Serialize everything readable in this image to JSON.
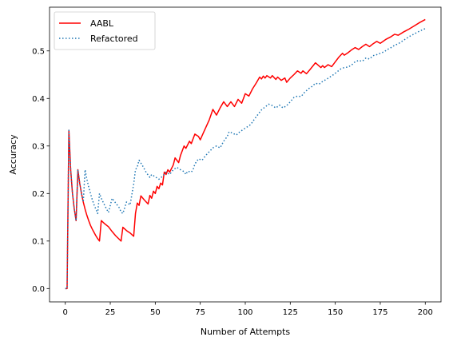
{
  "chart_data": {
    "type": "line",
    "title": "",
    "xlabel": "Number of Attempts",
    "ylabel": "Accuracy",
    "xlim": [
      -8.75,
      208.75
    ],
    "ylim": [
      -0.028,
      0.592
    ],
    "xticks": [
      0,
      25,
      50,
      75,
      100,
      125,
      150,
      175,
      200
    ],
    "yticks": [
      0.0,
      0.1,
      0.2,
      0.3,
      0.4,
      0.5
    ],
    "xtick_labels": [
      "0",
      "25",
      "50",
      "75",
      "100",
      "125",
      "150",
      "175",
      "200"
    ],
    "ytick_labels": [
      "0.0",
      "0.1",
      "0.2",
      "0.3",
      "0.4",
      "0.5"
    ],
    "grid": false,
    "legend": {
      "placement": "top-left"
    },
    "series": [
      {
        "name": "AABL",
        "color": "#ff0000",
        "style": "solid",
        "points": [
          [
            0,
            0
          ],
          [
            1,
            0
          ],
          [
            2,
            0.333
          ],
          [
            3,
            0.25
          ],
          [
            4,
            0.2
          ],
          [
            5,
            0.167
          ],
          [
            6,
            0.143
          ],
          [
            7,
            0.25
          ],
          [
            8,
            0.222
          ],
          [
            9,
            0.2
          ],
          [
            10,
            0.182
          ],
          [
            11,
            0.167
          ],
          [
            12,
            0.154
          ],
          [
            13,
            0.143
          ],
          [
            14,
            0.133
          ],
          [
            15,
            0.125
          ],
          [
            16,
            0.118
          ],
          [
            17,
            0.111
          ],
          [
            18,
            0.105
          ],
          [
            19,
            0.1
          ],
          [
            20,
            0.143
          ],
          [
            22,
            0.136
          ],
          [
            24,
            0.13
          ],
          [
            26,
            0.12
          ],
          [
            28,
            0.111
          ],
          [
            31,
            0.1
          ],
          [
            32,
            0.129
          ],
          [
            34,
            0.122
          ],
          [
            36,
            0.117
          ],
          [
            38,
            0.11
          ],
          [
            39,
            0.158
          ],
          [
            40,
            0.18
          ],
          [
            41,
            0.175
          ],
          [
            42,
            0.195
          ],
          [
            44,
            0.186
          ],
          [
            46,
            0.178
          ],
          [
            47,
            0.196
          ],
          [
            48,
            0.19
          ],
          [
            49,
            0.205
          ],
          [
            50,
            0.2
          ],
          [
            51,
            0.215
          ],
          [
            52,
            0.21
          ],
          [
            53,
            0.222
          ],
          [
            54,
            0.218
          ],
          [
            55,
            0.245
          ],
          [
            56,
            0.24
          ],
          [
            57,
            0.25
          ],
          [
            58,
            0.245
          ],
          [
            60,
            0.26
          ],
          [
            61,
            0.275
          ],
          [
            63,
            0.265
          ],
          [
            64,
            0.28
          ],
          [
            66,
            0.3
          ],
          [
            67,
            0.295
          ],
          [
            69,
            0.31
          ],
          [
            70,
            0.305
          ],
          [
            72,
            0.325
          ],
          [
            74,
            0.32
          ],
          [
            75,
            0.313
          ],
          [
            77,
            0.33
          ],
          [
            80,
            0.355
          ],
          [
            82,
            0.377
          ],
          [
            84,
            0.365
          ],
          [
            86,
            0.38
          ],
          [
            88,
            0.393
          ],
          [
            90,
            0.383
          ],
          [
            92,
            0.393
          ],
          [
            94,
            0.383
          ],
          [
            96,
            0.398
          ],
          [
            98,
            0.39
          ],
          [
            100,
            0.41
          ],
          [
            102,
            0.405
          ],
          [
            104,
            0.42
          ],
          [
            106,
            0.432
          ],
          [
            108,
            0.445
          ],
          [
            109,
            0.441
          ],
          [
            110,
            0.447
          ],
          [
            111,
            0.443
          ],
          [
            112,
            0.448
          ],
          [
            114,
            0.443
          ],
          [
            115,
            0.448
          ],
          [
            117,
            0.44
          ],
          [
            118,
            0.445
          ],
          [
            120,
            0.438
          ],
          [
            122,
            0.443
          ],
          [
            123,
            0.434
          ],
          [
            125,
            0.443
          ],
          [
            127,
            0.45
          ],
          [
            129,
            0.458
          ],
          [
            131,
            0.453
          ],
          [
            132,
            0.458
          ],
          [
            134,
            0.452
          ],
          [
            136,
            0.461
          ],
          [
            139,
            0.475
          ],
          [
            142,
            0.465
          ],
          [
            143,
            0.469
          ],
          [
            144,
            0.465
          ],
          [
            146,
            0.471
          ],
          [
            148,
            0.467
          ],
          [
            150,
            0.477
          ],
          [
            152,
            0.487
          ],
          [
            154,
            0.495
          ],
          [
            155,
            0.491
          ],
          [
            157,
            0.496
          ],
          [
            159,
            0.502
          ],
          [
            161,
            0.507
          ],
          [
            163,
            0.503
          ],
          [
            165,
            0.509
          ],
          [
            167,
            0.514
          ],
          [
            169,
            0.509
          ],
          [
            171,
            0.515
          ],
          [
            173,
            0.52
          ],
          [
            175,
            0.516
          ],
          [
            178,
            0.524
          ],
          [
            181,
            0.53
          ],
          [
            183,
            0.535
          ],
          [
            185,
            0.533
          ],
          [
            188,
            0.54
          ],
          [
            191,
            0.546
          ],
          [
            194,
            0.553
          ],
          [
            197,
            0.56
          ],
          [
            200,
            0.566
          ]
        ]
      },
      {
        "name": "Refactored",
        "color": "#1f77b4",
        "style": "dotted",
        "points": [
          [
            0,
            0
          ],
          [
            1,
            0
          ],
          [
            2,
            0.333
          ],
          [
            3,
            0.25
          ],
          [
            4,
            0.2
          ],
          [
            5,
            0.167
          ],
          [
            6,
            0.143
          ],
          [
            7,
            0.25
          ],
          [
            8,
            0.222
          ],
          [
            9,
            0.2
          ],
          [
            10,
            0.182
          ],
          [
            11,
            0.25
          ],
          [
            12,
            0.23
          ],
          [
            13,
            0.214
          ],
          [
            14,
            0.2
          ],
          [
            15,
            0.187
          ],
          [
            16,
            0.176
          ],
          [
            17,
            0.167
          ],
          [
            18,
            0.158
          ],
          [
            19,
            0.2
          ],
          [
            20,
            0.19
          ],
          [
            21,
            0.182
          ],
          [
            22,
            0.174
          ],
          [
            23,
            0.167
          ],
          [
            24,
            0.16
          ],
          [
            26,
            0.19
          ],
          [
            28,
            0.18
          ],
          [
            30,
            0.17
          ],
          [
            31,
            0.161
          ],
          [
            32,
            0.158
          ],
          [
            34,
            0.182
          ],
          [
            36,
            0.176
          ],
          [
            38,
            0.22
          ],
          [
            39,
            0.25
          ],
          [
            40,
            0.256
          ],
          [
            41,
            0.27
          ],
          [
            43,
            0.258
          ],
          [
            45,
            0.244
          ],
          [
            47,
            0.234
          ],
          [
            48,
            0.24
          ],
          [
            50,
            0.235
          ],
          [
            52,
            0.23
          ],
          [
            54,
            0.236
          ],
          [
            56,
            0.245
          ],
          [
            58,
            0.24
          ],
          [
            60,
            0.25
          ],
          [
            62,
            0.255
          ],
          [
            64,
            0.25
          ],
          [
            66,
            0.246
          ],
          [
            67,
            0.24
          ],
          [
            68,
            0.247
          ],
          [
            70,
            0.245
          ],
          [
            71,
            0.25
          ],
          [
            72,
            0.262
          ],
          [
            74,
            0.273
          ],
          [
            76,
            0.27
          ],
          [
            78,
            0.28
          ],
          [
            80,
            0.288
          ],
          [
            82,
            0.296
          ],
          [
            84,
            0.3
          ],
          [
            86,
            0.296
          ],
          [
            88,
            0.31
          ],
          [
            90,
            0.32
          ],
          [
            91,
            0.33
          ],
          [
            93,
            0.327
          ],
          [
            95,
            0.323
          ],
          [
            97,
            0.33
          ],
          [
            99,
            0.335
          ],
          [
            101,
            0.34
          ],
          [
            103,
            0.345
          ],
          [
            105,
            0.356
          ],
          [
            107,
            0.366
          ],
          [
            109,
            0.376
          ],
          [
            111,
            0.382
          ],
          [
            113,
            0.388
          ],
          [
            115,
            0.385
          ],
          [
            117,
            0.38
          ],
          [
            119,
            0.386
          ],
          [
            121,
            0.38
          ],
          [
            123,
            0.385
          ],
          [
            125,
            0.393
          ],
          [
            127,
            0.402
          ],
          [
            129,
            0.405
          ],
          [
            131,
            0.404
          ],
          [
            133,
            0.413
          ],
          [
            135,
            0.42
          ],
          [
            137,
            0.425
          ],
          [
            139,
            0.432
          ],
          [
            141,
            0.43
          ],
          [
            143,
            0.436
          ],
          [
            145,
            0.44
          ],
          [
            147,
            0.445
          ],
          [
            149,
            0.45
          ],
          [
            151,
            0.456
          ],
          [
            153,
            0.462
          ],
          [
            155,
            0.465
          ],
          [
            157,
            0.466
          ],
          [
            159,
            0.47
          ],
          [
            161,
            0.477
          ],
          [
            163,
            0.48
          ],
          [
            165,
            0.478
          ],
          [
            167,
            0.485
          ],
          [
            169,
            0.483
          ],
          [
            171,
            0.49
          ],
          [
            173,
            0.492
          ],
          [
            175,
            0.495
          ],
          [
            177,
            0.498
          ],
          [
            179,
            0.503
          ],
          [
            181,
            0.507
          ],
          [
            183,
            0.512
          ],
          [
            185,
            0.515
          ],
          [
            187,
            0.52
          ],
          [
            189,
            0.525
          ],
          [
            191,
            0.53
          ],
          [
            193,
            0.534
          ],
          [
            195,
            0.538
          ],
          [
            197,
            0.542
          ],
          [
            200,
            0.547
          ]
        ]
      }
    ]
  }
}
